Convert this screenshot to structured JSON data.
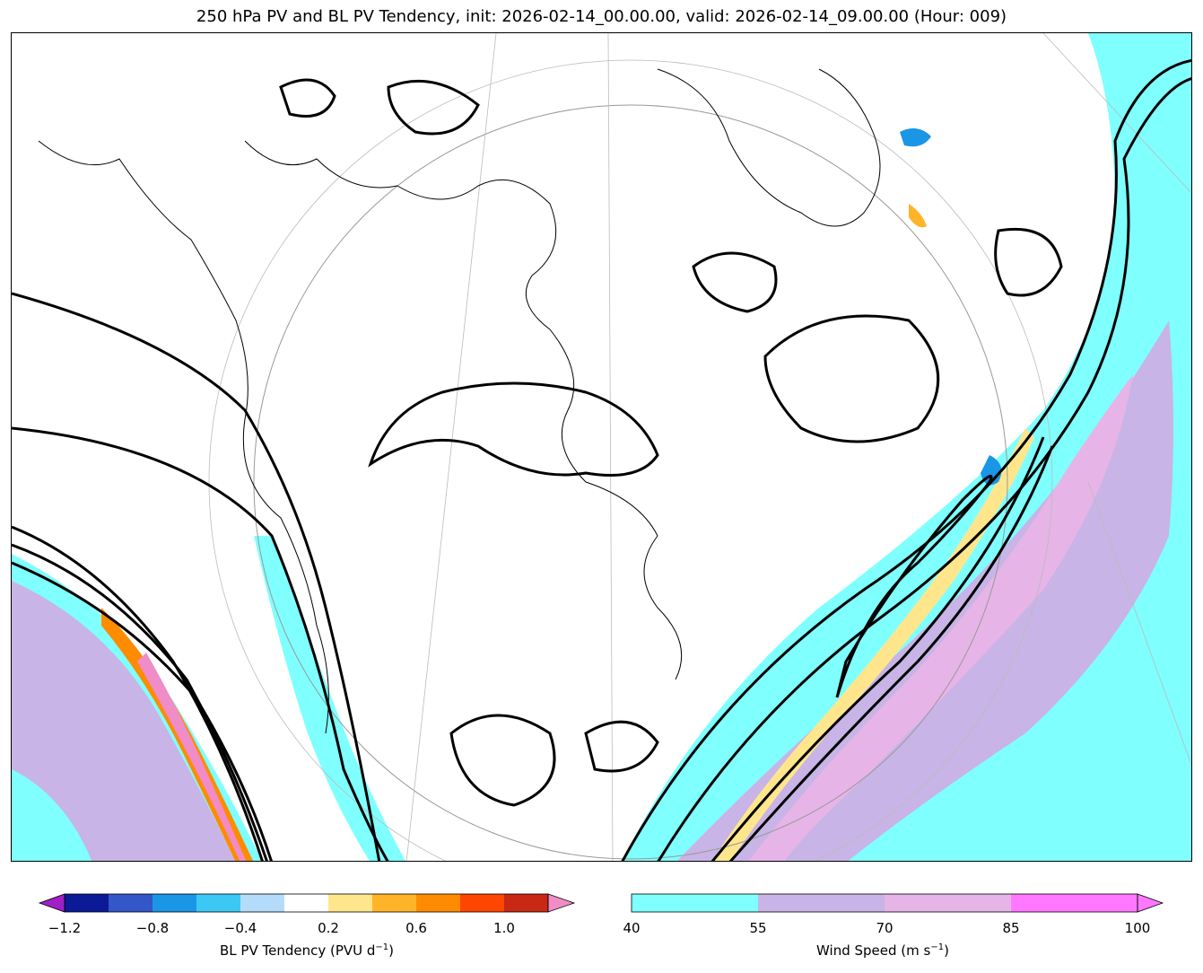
{
  "title": "250 hPa PV and BL PV Tendency, init: 2026-02-14_00.00.00, valid: 2026-02-14_09.00.00 (Hour: 009)",
  "map": {
    "fields": [
      "250 hPa PV contours",
      "BL PV Tendency shading",
      "Wind Speed shading"
    ]
  },
  "colorbars": {
    "pv_tendency": {
      "label_text": "BL PV Tendency (PVU d",
      "label_sup": "−1",
      "label_close": ")",
      "ticks": [
        "−1.2",
        "−0.8",
        "−0.4",
        "0.2",
        "0.6",
        "1.0"
      ],
      "bins": [
        -1.2,
        -1.0,
        -0.8,
        -0.6,
        -0.4,
        -0.2,
        0.2,
        0.4,
        0.6,
        0.8,
        1.0,
        1.2
      ],
      "colors": [
        "#a020c8",
        "#0b1a96",
        "#3357c8",
        "#1a96e6",
        "#3cc8f5",
        "#b4dcfa",
        "#ffffff",
        "#ffe68c",
        "#ffb428",
        "#ff8c00",
        "#ff4600",
        "#c82814",
        "#f08cc8"
      ]
    },
    "wind_speed": {
      "label_text": "Wind Speed (m s",
      "label_sup": "−1",
      "label_close": ")",
      "ticks": [
        "40",
        "55",
        "70",
        "85",
        "100"
      ],
      "colors": [
        "#80ffff",
        "#c8b4e6",
        "#e6b4e6",
        "#ff78ff"
      ]
    }
  }
}
